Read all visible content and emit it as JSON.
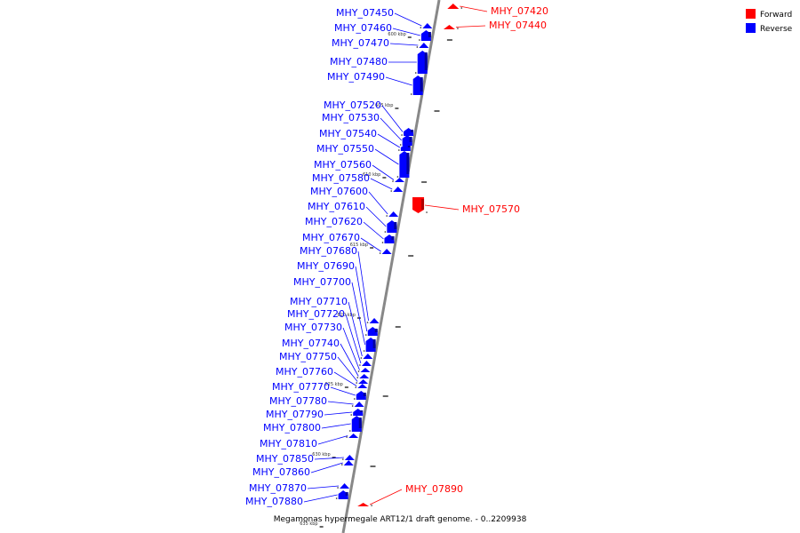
{
  "caption": "Megamonas hypermegale ART12/1 draft genome. - 0..2209938",
  "legend": [
    {
      "label": "Forward",
      "color": "#ff0000"
    },
    {
      "label": "Reverse",
      "color": "#0000ff"
    }
  ],
  "colors": {
    "forward": "#ff0000",
    "reverse": "#0000ff",
    "backbone": "#888888"
  },
  "ticks": [
    "600 kbp",
    "605 kbp",
    "610 kbp",
    "615 kbp",
    "620 kbp",
    "625 kbp",
    "630 kbp",
    "635 kbp"
  ],
  "genes": [
    {
      "id": "MHY_07420",
      "strand": "forward"
    },
    {
      "id": "MHY_07440",
      "strand": "forward"
    },
    {
      "id": "MHY_07450",
      "strand": "reverse"
    },
    {
      "id": "MHY_07460",
      "strand": "reverse"
    },
    {
      "id": "MHY_07470",
      "strand": "reverse"
    },
    {
      "id": "MHY_07480",
      "strand": "reverse"
    },
    {
      "id": "MHY_07490",
      "strand": "reverse"
    },
    {
      "id": "MHY_07520",
      "strand": "reverse"
    },
    {
      "id": "MHY_07530",
      "strand": "reverse"
    },
    {
      "id": "MHY_07540",
      "strand": "reverse"
    },
    {
      "id": "MHY_07550",
      "strand": "reverse"
    },
    {
      "id": "MHY_07560",
      "strand": "reverse"
    },
    {
      "id": "MHY_07580",
      "strand": "reverse"
    },
    {
      "id": "MHY_07600",
      "strand": "reverse"
    },
    {
      "id": "MHY_07610",
      "strand": "reverse"
    },
    {
      "id": "MHY_07620",
      "strand": "reverse"
    },
    {
      "id": "MHY_07670",
      "strand": "reverse"
    },
    {
      "id": "MHY_07680",
      "strand": "reverse"
    },
    {
      "id": "MHY_07690",
      "strand": "reverse"
    },
    {
      "id": "MHY_07700",
      "strand": "reverse"
    },
    {
      "id": "MHY_07710",
      "strand": "reverse"
    },
    {
      "id": "MHY_07720",
      "strand": "reverse"
    },
    {
      "id": "MHY_07730",
      "strand": "reverse"
    },
    {
      "id": "MHY_07740",
      "strand": "reverse"
    },
    {
      "id": "MHY_07750",
      "strand": "reverse"
    },
    {
      "id": "MHY_07760",
      "strand": "reverse"
    },
    {
      "id": "MHY_07770",
      "strand": "reverse"
    },
    {
      "id": "MHY_07780",
      "strand": "reverse"
    },
    {
      "id": "MHY_07790",
      "strand": "reverse"
    },
    {
      "id": "MHY_07800",
      "strand": "reverse"
    },
    {
      "id": "MHY_07810",
      "strand": "reverse"
    },
    {
      "id": "MHY_07850",
      "strand": "reverse"
    },
    {
      "id": "MHY_07860",
      "strand": "reverse"
    },
    {
      "id": "MHY_07870",
      "strand": "reverse"
    },
    {
      "id": "MHY_07880",
      "strand": "reverse"
    },
    {
      "id": "MHY_07570",
      "strand": "forward"
    },
    {
      "id": "MHY_07890",
      "strand": "forward"
    }
  ]
}
